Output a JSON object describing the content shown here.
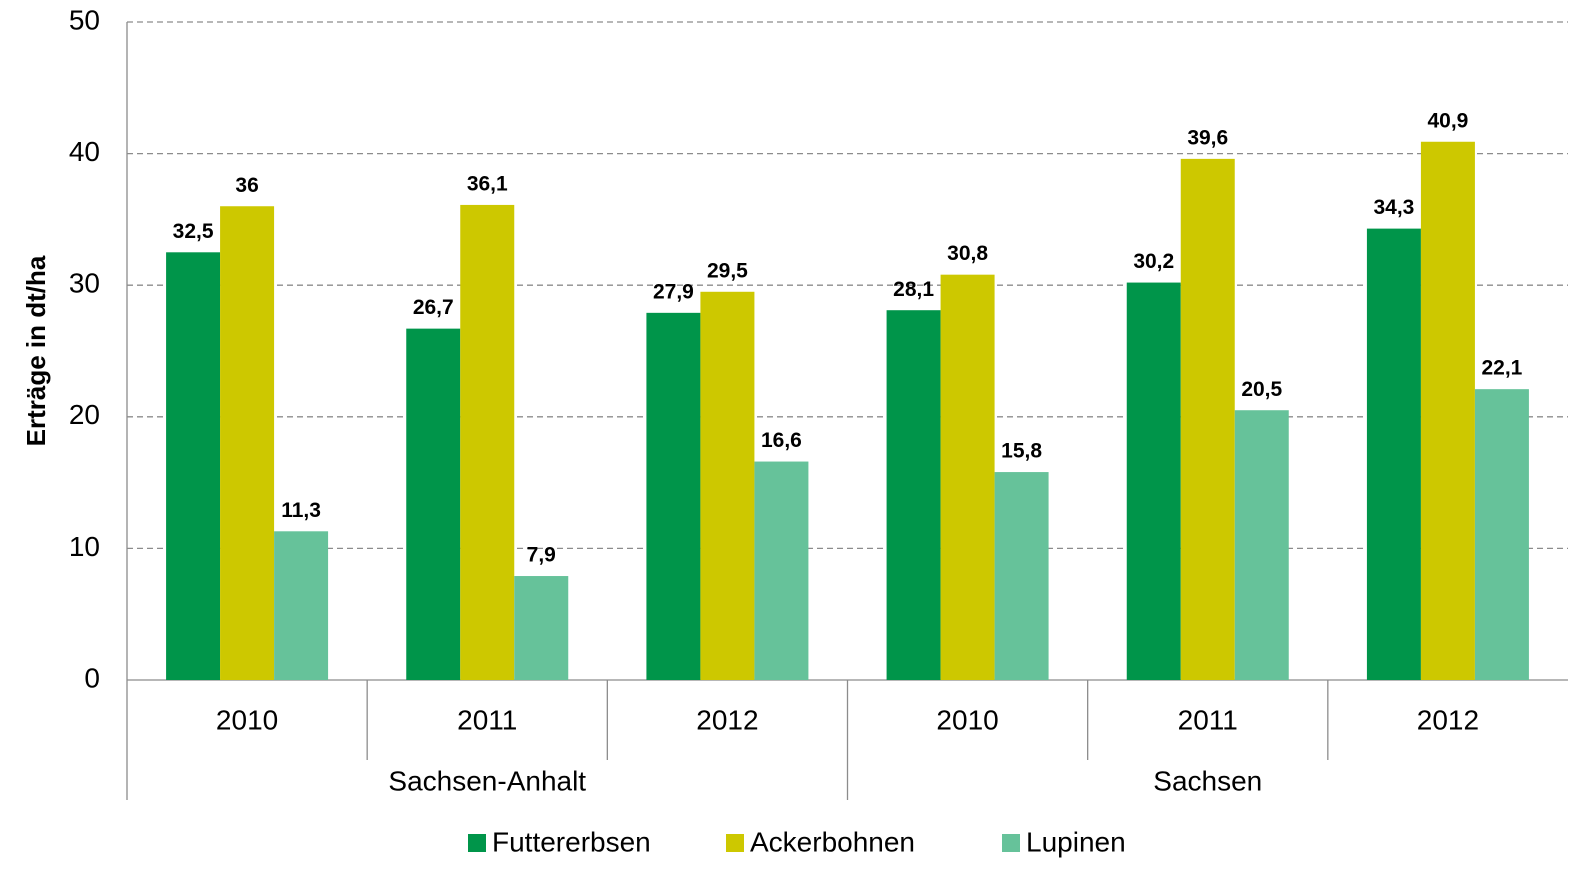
{
  "chart_data": {
    "type": "bar",
    "y_label": "Erträge in dt/ha",
    "groups": [
      {
        "name": "Sachsen-Anhalt",
        "categories": [
          "2010",
          "2011",
          "2012"
        ]
      },
      {
        "name": "Sachsen",
        "categories": [
          "2010",
          "2011",
          "2012"
        ]
      }
    ],
    "series": [
      {
        "name": "Futtererbsen",
        "color": "#00954a",
        "values": [
          32.5,
          26.7,
          27.9,
          28.1,
          30.2,
          34.3
        ],
        "value_labels": [
          "32,5",
          "26,7",
          "27,9",
          "28,1",
          "30,2",
          "34,3"
        ]
      },
      {
        "name": "Ackerbohnen",
        "color": "#cdc800",
        "values": [
          36,
          36.1,
          29.5,
          30.8,
          39.6,
          40.9
        ],
        "value_labels": [
          "36",
          "36,1",
          "29,5",
          "30,8",
          "39,6",
          "40,9"
        ]
      },
      {
        "name": "Lupinen",
        "color": "#66c29a",
        "values": [
          11.3,
          7.9,
          16.6,
          15.8,
          20.5,
          22.1
        ],
        "value_labels": [
          "11,3",
          "7,9",
          "16,6",
          "15,8",
          "20,5",
          "22,1"
        ]
      }
    ],
    "ylim": [
      0,
      50
    ],
    "yticks": [
      0,
      10,
      20,
      30,
      40,
      50
    ],
    "grid": true,
    "legend": "bottom"
  }
}
